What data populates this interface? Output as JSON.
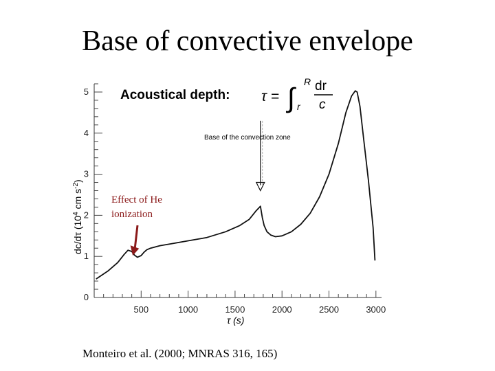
{
  "slide": {
    "title": "Base of convective envelope",
    "citation": "Monteiro et al. (2000; MNRAS 316, 165)"
  },
  "chart_data": {
    "type": "line",
    "title": "",
    "formula_label": "Acoustical depth:",
    "formula_lhs": "τ =",
    "formula_upper": "R",
    "formula_lower": "r",
    "formula_num": "dr",
    "formula_den": "c",
    "xlabel": "τ  (s)",
    "ylabel_main": "dc/dτ  (10",
    "ylabel_exp1": "4",
    "ylabel_mid": "  cm s",
    "ylabel_exp2": "-2",
    "ylabel_end": ")",
    "xlim": [
      0,
      3060
    ],
    "ylim": [
      0,
      5.2
    ],
    "x_ticks": [
      500,
      1000,
      1500,
      2000,
      2500,
      3000
    ],
    "y_ticks": [
      0,
      1,
      2,
      3,
      4,
      5
    ],
    "grid": false,
    "annotations": {
      "bcz_label": "Base of the  convection zone",
      "bcz_tau": 1770,
      "bcz_arrow_top": 4.3,
      "bcz_arrow_bottom": 2.6,
      "he_label": "Effect of He\nionization",
      "he_color": "#8b1a1a",
      "he_tau": 420,
      "he_value": 1.02
    },
    "series": [
      {
        "x": [
          20,
          150,
          250,
          320,
          360,
          400,
          430,
          460,
          500,
          530,
          560,
          600,
          700,
          850,
          1000,
          1200,
          1400,
          1550,
          1650,
          1720,
          1770,
          1775,
          1790,
          1810,
          1840,
          1880,
          1930,
          2000,
          2100,
          2200,
          2300,
          2400,
          2500,
          2600,
          2680,
          2740,
          2780,
          2800,
          2830,
          2870,
          2920,
          2970,
          2990
        ],
        "y": [
          0.45,
          0.65,
          0.85,
          1.05,
          1.15,
          1.12,
          1.03,
          0.98,
          1.02,
          1.1,
          1.16,
          1.2,
          1.26,
          1.32,
          1.38,
          1.46,
          1.6,
          1.75,
          1.9,
          2.1,
          2.22,
          2.15,
          1.95,
          1.75,
          1.6,
          1.52,
          1.48,
          1.5,
          1.6,
          1.78,
          2.05,
          2.45,
          3.0,
          3.75,
          4.5,
          4.9,
          5.03,
          5.0,
          4.65,
          3.85,
          2.85,
          1.7,
          0.9
        ]
      }
    ]
  }
}
